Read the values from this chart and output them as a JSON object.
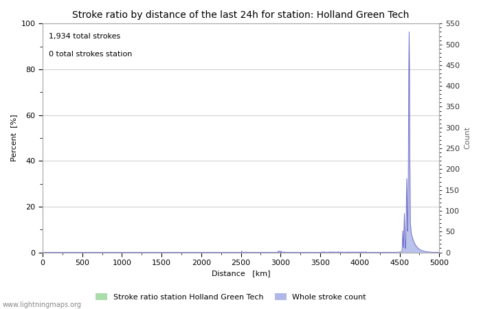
{
  "title": "Stroke ratio by distance of the last 24h for station: Holland Green Tech",
  "annotation_line1": "1,934 total strokes",
  "annotation_line2": "0 total strokes station",
  "xlabel": "Distance   [km]",
  "ylabel_left": "Percent  [%]",
  "ylabel_right": "Count",
  "watermark": "www.lightningmaps.org",
  "xlim": [
    0,
    5000
  ],
  "ylim_left": [
    0,
    100
  ],
  "ylim_right": [
    0,
    550
  ],
  "yticks_left": [
    0,
    20,
    40,
    60,
    80,
    100
  ],
  "yticks_right": [
    0,
    50,
    100,
    150,
    200,
    250,
    300,
    350,
    400,
    450,
    500,
    550
  ],
  "xticks": [
    0,
    500,
    1000,
    1500,
    2000,
    2500,
    3000,
    3500,
    4000,
    4500,
    5000
  ],
  "legend_entries": [
    "Stroke ratio station Holland Green Tech",
    "Whole stroke count"
  ],
  "legend_colors": [
    "#aaddaa",
    "#b0b8e8"
  ],
  "bg_color": "#ffffff",
  "grid_color": "#cccccc",
  "stroke_ratio_color": "#aaddaa",
  "stroke_count_color": "#b0b8e8",
  "stroke_count_line_color": "#7070cc",
  "title_fontsize": 10,
  "label_fontsize": 8,
  "tick_fontsize": 8,
  "annotation_fontsize": 8,
  "watermark_fontsize": 7
}
